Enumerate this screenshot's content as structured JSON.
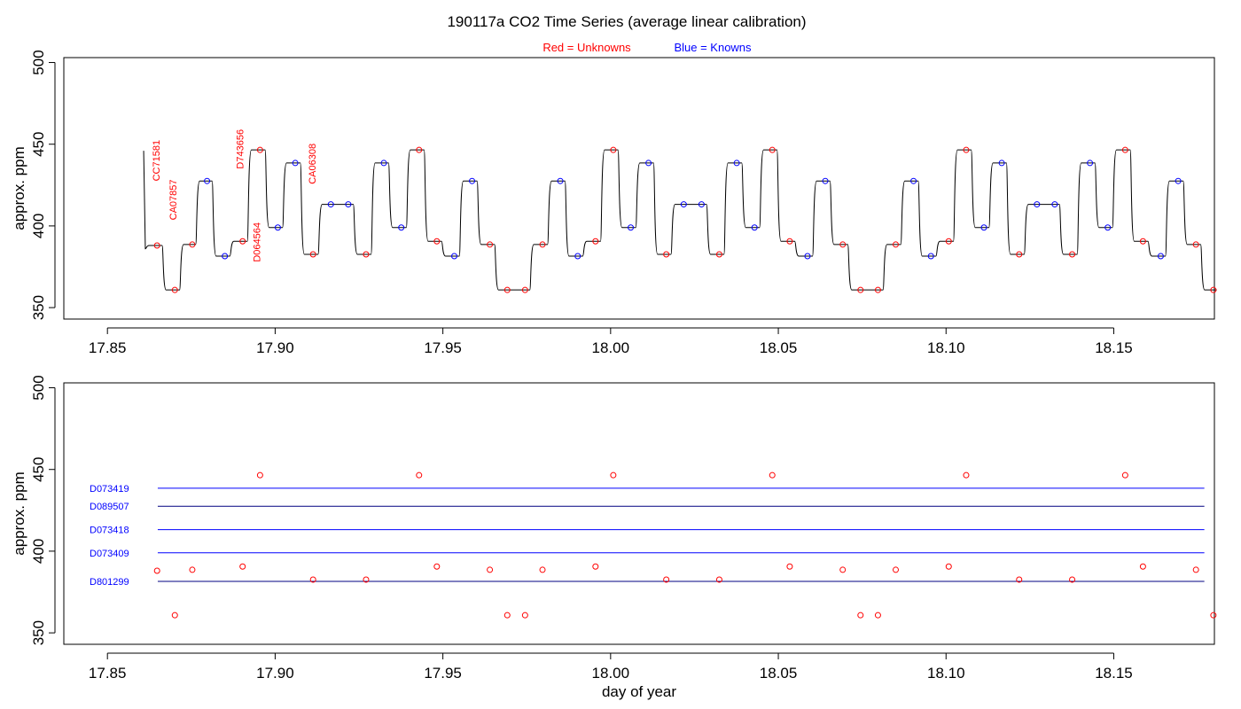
{
  "title": "190117a   CO2 Time Series (average linear calibration)",
  "legend": {
    "unknowns_label": "Red = Unknowns",
    "knowns_label": "Blue = Knowns",
    "unknown_color": "#ff0000",
    "known_color": "#0000ff"
  },
  "chart_data": [
    {
      "type": "line",
      "panel": "top",
      "ylabel": "approx. ppm",
      "xlim": [
        17.837,
        18.18
      ],
      "ylim": [
        343,
        503
      ],
      "xticks": [
        17.85,
        17.9,
        17.95,
        18.0,
        18.05,
        18.1,
        18.15
      ],
      "xtick_labels": [
        "17.85",
        "17.90",
        "17.95",
        "18.00",
        "18.05",
        "18.10",
        "18.15"
      ],
      "yticks": [
        350,
        400,
        450,
        500
      ],
      "ytick_labels": [
        "350",
        "400",
        "450",
        "500"
      ],
      "trace_color": "#000000",
      "knowns_points": [
        {
          "x": 17.8797,
          "y": 427.5
        },
        {
          "x": 17.885,
          "y": 381.5
        },
        {
          "x": 17.9008,
          "y": 399.0
        },
        {
          "x": 17.906,
          "y": 438.5
        },
        {
          "x": 17.9166,
          "y": 413.2
        },
        {
          "x": 17.9218,
          "y": 413.2
        },
        {
          "x": 17.9324,
          "y": 438.5
        },
        {
          "x": 17.9376,
          "y": 399.0
        },
        {
          "x": 17.9534,
          "y": 381.5
        },
        {
          "x": 17.9587,
          "y": 427.5
        },
        {
          "x": 17.985,
          "y": 427.5
        },
        {
          "x": 17.9902,
          "y": 381.5
        },
        {
          "x": 18.006,
          "y": 399.0
        },
        {
          "x": 18.0113,
          "y": 438.5
        },
        {
          "x": 18.0218,
          "y": 413.2
        },
        {
          "x": 18.0271,
          "y": 413.2
        },
        {
          "x": 18.0376,
          "y": 438.5
        },
        {
          "x": 18.0429,
          "y": 399.0
        },
        {
          "x": 18.0587,
          "y": 381.5
        },
        {
          "x": 18.064,
          "y": 427.5
        },
        {
          "x": 18.0903,
          "y": 427.5
        },
        {
          "x": 18.0955,
          "y": 381.5
        },
        {
          "x": 18.1113,
          "y": 399.0
        },
        {
          "x": 18.1166,
          "y": 438.5
        },
        {
          "x": 18.1271,
          "y": 413.2
        },
        {
          "x": 18.1324,
          "y": 413.2
        },
        {
          "x": 18.1429,
          "y": 438.5
        },
        {
          "x": 18.1482,
          "y": 399.0
        },
        {
          "x": 18.164,
          "y": 381.5
        },
        {
          "x": 18.1692,
          "y": 427.5
        }
      ],
      "unknowns_points": [
        {
          "x": 17.8648,
          "y": 388.0
        },
        {
          "x": 17.8701,
          "y": 360.8
        },
        {
          "x": 17.8753,
          "y": 388.6
        },
        {
          "x": 17.8903,
          "y": 390.6
        },
        {
          "x": 17.8955,
          "y": 446.5
        },
        {
          "x": 17.9113,
          "y": 382.6
        },
        {
          "x": 17.9271,
          "y": 382.6
        },
        {
          "x": 17.9429,
          "y": 446.5
        },
        {
          "x": 17.9482,
          "y": 390.6
        },
        {
          "x": 17.964,
          "y": 388.6
        },
        {
          "x": 17.9692,
          "y": 360.8
        },
        {
          "x": 17.9745,
          "y": 360.8
        },
        {
          "x": 17.9797,
          "y": 388.6
        },
        {
          "x": 17.9955,
          "y": 390.6
        },
        {
          "x": 18.0008,
          "y": 446.5
        },
        {
          "x": 18.0166,
          "y": 382.6
        },
        {
          "x": 18.0324,
          "y": 382.6
        },
        {
          "x": 18.0482,
          "y": 446.5
        },
        {
          "x": 18.0534,
          "y": 390.6
        },
        {
          "x": 18.0692,
          "y": 388.6
        },
        {
          "x": 18.0745,
          "y": 360.8
        },
        {
          "x": 18.0797,
          "y": 360.8
        },
        {
          "x": 18.085,
          "y": 388.6
        },
        {
          "x": 18.1008,
          "y": 390.6
        },
        {
          "x": 18.106,
          "y": 446.5
        },
        {
          "x": 18.1218,
          "y": 382.6
        },
        {
          "x": 18.1376,
          "y": 382.6
        },
        {
          "x": 18.1534,
          "y": 446.5
        },
        {
          "x": 18.1587,
          "y": 390.6
        },
        {
          "x": 18.1745,
          "y": 388.6
        },
        {
          "x": 18.1797,
          "y": 360.8
        }
      ],
      "annotations": [
        {
          "text": "CC71581",
          "x": 17.8655,
          "y": 440,
          "color": "#ff0000"
        },
        {
          "text": "CA07857",
          "x": 17.8705,
          "y": 416,
          "color": "#ff0000"
        },
        {
          "text": "D743656",
          "x": 17.8905,
          "y": 447,
          "color": "#ff0000"
        },
        {
          "text": "D064564",
          "x": 17.8955,
          "y": 390,
          "color": "#ff0000"
        },
        {
          "text": "CA06308",
          "x": 17.912,
          "y": 438,
          "color": "#ff0000"
        }
      ]
    },
    {
      "type": "scatter",
      "panel": "bottom",
      "xlabel": "day of year",
      "ylabel": "approx. ppm",
      "xlim": [
        17.837,
        18.18
      ],
      "ylim": [
        343,
        503
      ],
      "xticks": [
        17.85,
        17.9,
        17.95,
        18.0,
        18.05,
        18.1,
        18.15
      ],
      "xtick_labels": [
        "17.85",
        "17.90",
        "17.95",
        "18.00",
        "18.05",
        "18.10",
        "18.15"
      ],
      "yticks": [
        350,
        400,
        450,
        500
      ],
      "ytick_labels": [
        "350",
        "400",
        "450",
        "500"
      ],
      "reference_lines": [
        {
          "name": "D073419",
          "value": 438.5,
          "x_start": 17.865,
          "x_end": 18.177,
          "color": "#0000ff"
        },
        {
          "name": "D089507",
          "value": 427.5,
          "x_start": 17.865,
          "x_end": 18.177,
          "color": "#000080"
        },
        {
          "name": "D073418",
          "value": 413.2,
          "x_start": 17.865,
          "x_end": 18.177,
          "color": "#0000ff"
        },
        {
          "name": "D073409",
          "value": 399.0,
          "x_start": 17.865,
          "x_end": 18.177,
          "color": "#0000ff"
        },
        {
          "name": "D801299",
          "value": 381.5,
          "x_start": 17.865,
          "x_end": 18.177,
          "color": "#000080"
        }
      ],
      "unknowns_points": [
        {
          "x": 17.8648,
          "y": 388.0
        },
        {
          "x": 17.8701,
          "y": 360.8
        },
        {
          "x": 17.8753,
          "y": 388.6
        },
        {
          "x": 17.8903,
          "y": 390.6
        },
        {
          "x": 17.8955,
          "y": 446.5
        },
        {
          "x": 17.9113,
          "y": 382.6
        },
        {
          "x": 17.9271,
          "y": 382.6
        },
        {
          "x": 17.9429,
          "y": 446.5
        },
        {
          "x": 17.9482,
          "y": 390.6
        },
        {
          "x": 17.964,
          "y": 388.6
        },
        {
          "x": 17.9692,
          "y": 360.8
        },
        {
          "x": 17.9745,
          "y": 360.8
        },
        {
          "x": 17.9797,
          "y": 388.6
        },
        {
          "x": 17.9955,
          "y": 390.6
        },
        {
          "x": 18.0008,
          "y": 446.5
        },
        {
          "x": 18.0166,
          "y": 382.6
        },
        {
          "x": 18.0324,
          "y": 382.6
        },
        {
          "x": 18.0482,
          "y": 446.5
        },
        {
          "x": 18.0534,
          "y": 390.6
        },
        {
          "x": 18.0692,
          "y": 388.6
        },
        {
          "x": 18.0745,
          "y": 360.8
        },
        {
          "x": 18.0797,
          "y": 360.8
        },
        {
          "x": 18.085,
          "y": 388.6
        },
        {
          "x": 18.1008,
          "y": 390.6
        },
        {
          "x": 18.106,
          "y": 446.5
        },
        {
          "x": 18.1218,
          "y": 382.6
        },
        {
          "x": 18.1376,
          "y": 382.6
        },
        {
          "x": 18.1534,
          "y": 446.5
        },
        {
          "x": 18.1587,
          "y": 390.6
        },
        {
          "x": 18.1745,
          "y": 388.6
        },
        {
          "x": 18.1797,
          "y": 360.8
        }
      ]
    }
  ]
}
